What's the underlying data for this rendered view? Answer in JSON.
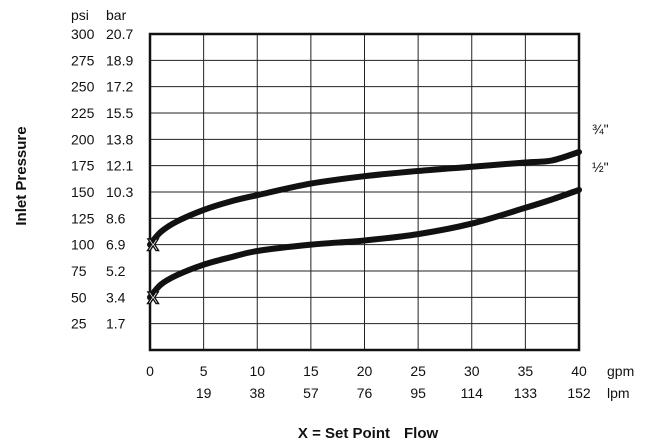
{
  "chart_data": {
    "type": "line",
    "y_axis": {
      "label": "Inlet Pressure",
      "unit_primary": "psi",
      "unit_secondary": "bar",
      "range": [
        0,
        300
      ],
      "ticks": [
        {
          "psi": "300",
          "bar": "20.7"
        },
        {
          "psi": "275",
          "bar": "18.9"
        },
        {
          "psi": "250",
          "bar": "17.2"
        },
        {
          "psi": "225",
          "bar": "15.5"
        },
        {
          "psi": "200",
          "bar": "13.8"
        },
        {
          "psi": "175",
          "bar": "12.1"
        },
        {
          "psi": "150",
          "bar": "10.3"
        },
        {
          "psi": "125",
          "bar": "8.6"
        },
        {
          "psi": "100",
          "bar": "6.9"
        },
        {
          "psi": "75",
          "bar": "5.2"
        },
        {
          "psi": "50",
          "bar": "3.4"
        },
        {
          "psi": "25",
          "bar": "1.7"
        }
      ]
    },
    "x_axis": {
      "label": "Flow",
      "unit_primary": "gpm",
      "unit_secondary": "lpm",
      "range": [
        0,
        40
      ],
      "ticks": [
        {
          "gpm": "0",
          "lpm": ""
        },
        {
          "gpm": "5",
          "lpm": "19"
        },
        {
          "gpm": "10",
          "lpm": "38"
        },
        {
          "gpm": "15",
          "lpm": "57"
        },
        {
          "gpm": "20",
          "lpm": "76"
        },
        {
          "gpm": "25",
          "lpm": "95"
        },
        {
          "gpm": "30",
          "lpm": "114"
        },
        {
          "gpm": "35",
          "lpm": "133"
        },
        {
          "gpm": "40",
          "lpm": "152"
        }
      ]
    },
    "grid": true,
    "legend_note": "X = Set Point",
    "set_point_marker": "X",
    "series": [
      {
        "name": "¾\"",
        "x": [
          0,
          1,
          2.5,
          5,
          7.5,
          10,
          15,
          20,
          25,
          30,
          35,
          37.5,
          40
        ],
        "y": [
          100,
          112,
          122,
          133,
          141,
          147,
          158,
          165,
          170,
          174,
          178,
          180,
          188
        ]
      },
      {
        "name": "½\"",
        "x": [
          0,
          1,
          2.5,
          5,
          7.5,
          10,
          15,
          20,
          25,
          30,
          35,
          37.5,
          40
        ],
        "y": [
          50,
          62,
          71,
          81,
          88,
          94,
          100,
          104,
          110,
          120,
          135,
          143,
          152
        ]
      }
    ]
  }
}
